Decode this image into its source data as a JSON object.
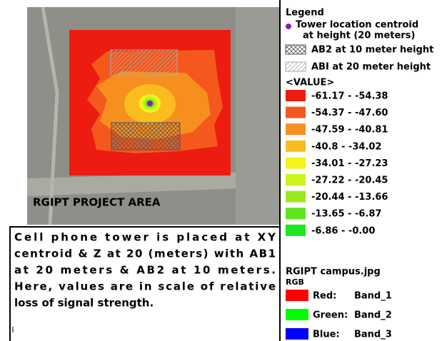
{
  "map": {
    "label": "RGIPT PROJECT AREA"
  },
  "legend": {
    "title": "Legend",
    "tower": [
      "Tower location centroid",
      "at height (20 meters)"
    ],
    "ab2": "AB2 at 10 meter height",
    "abi": "ABI at 20 meter height",
    "value_title": "<VALUE>",
    "classes": [
      {
        "label": "-61.17 - -54.38",
        "color": "#ec1c10"
      },
      {
        "label": "-54.37 - -47.60",
        "color": "#f5581c"
      },
      {
        "label": "-47.59 - -40.81",
        "color": "#f78f1f"
      },
      {
        "label": "-40.8 - -34.02",
        "color": "#fbbd1e"
      },
      {
        "label": "-34.01 - -27.23",
        "color": "#f4f41c"
      },
      {
        "label": "-27.22 - -20.45",
        "color": "#cdf21d"
      },
      {
        "label": "-20.44 - -13.66",
        "color": "#9be81d"
      },
      {
        "label": "-13.65 - -6.87",
        "color": "#5ee41f"
      },
      {
        "label": "-6.86 - -0.00",
        "color": "#1fe61f"
      }
    ],
    "raster": "RGIPT campus.jpg",
    "rgb": "RGB",
    "bands": [
      {
        "channel": "Red:",
        "band": "Band_1",
        "color": "#ff0000"
      },
      {
        "channel": "Green:",
        "band": "Band_2",
        "color": "#00ff00"
      },
      {
        "channel": "Blue:",
        "band": "Band_3",
        "color": "#0000ff"
      }
    ]
  },
  "description": [
    "Cell phone tower is placed at XY",
    "centroid & Z at 20 (meters) with AB1",
    "at 20 meters & AB2 at 10 meters.",
    "Here, values are in scale of relative",
    "loss of signal strength."
  ]
}
